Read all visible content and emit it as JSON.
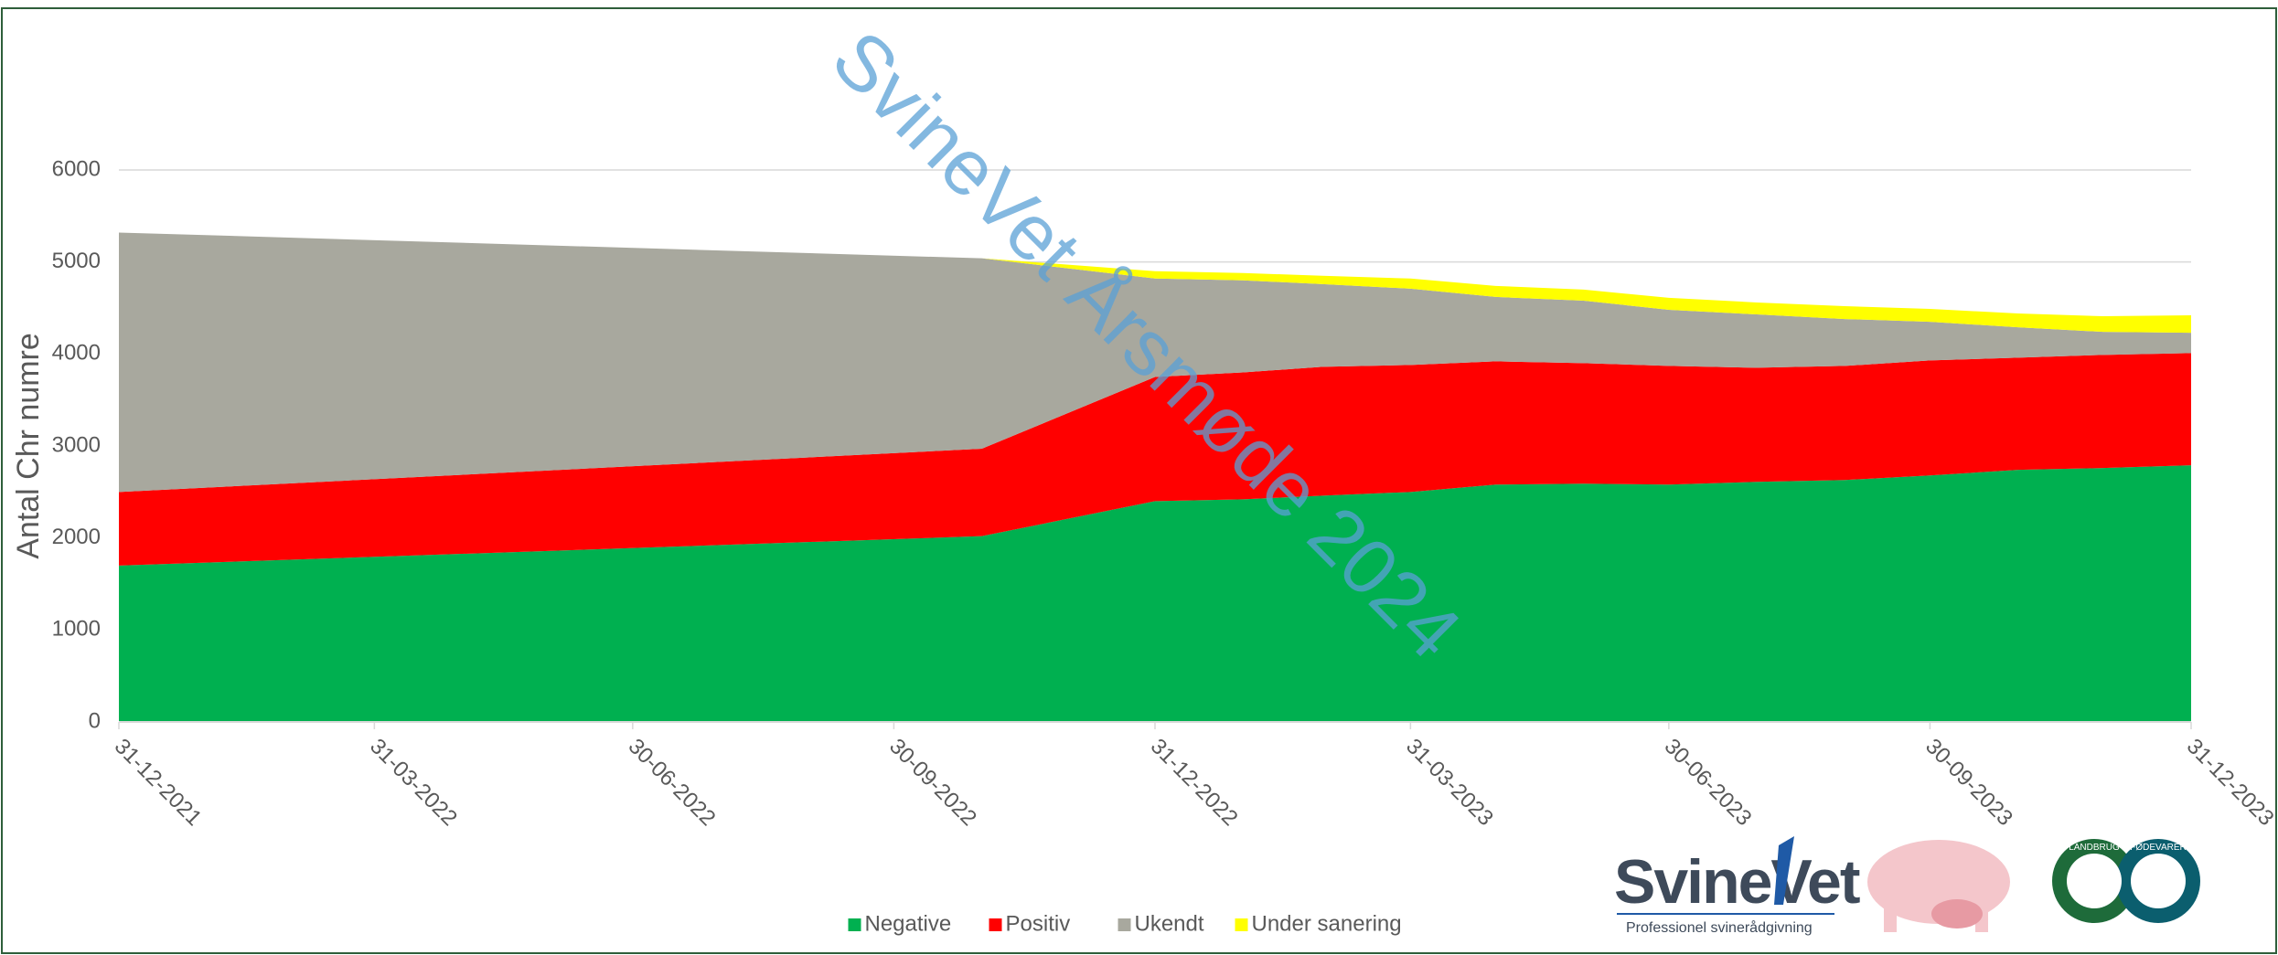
{
  "chart_data": {
    "type": "area",
    "stacked": true,
    "y_label": "Antal Chr numre",
    "watermark": "SvineVet Årsmøde 2024",
    "x": [
      "31-12-2021",
      "31-10-2022",
      "31-12-2022",
      "31-01-2023",
      "28-02-2023",
      "31-03-2023",
      "30-04-2023",
      "31-05-2023",
      "30-06-2023",
      "31-07-2023",
      "31-08-2023",
      "30-09-2023",
      "31-10-2023",
      "30-11-2023",
      "31-12-2023"
    ],
    "xlim": [
      "31-12-2021",
      "31-12-2023"
    ],
    "xticks": [
      "31-12-2021",
      "31-03-2022",
      "30-06-2022",
      "30-09-2022",
      "31-12-2022",
      "31-03-2023",
      "30-06-2023",
      "30-09-2023",
      "31-12-2023"
    ],
    "ylim": [
      0,
      6000
    ],
    "yticks": [
      0,
      1000,
      2000,
      3000,
      4000,
      5000,
      6000
    ],
    "grid": true,
    "legend": "bottom",
    "series": [
      {
        "name": "Negative",
        "color": "#00b050",
        "values": [
          1700,
          2020,
          2400,
          2420,
          2460,
          2500,
          2580,
          2590,
          2580,
          2610,
          2630,
          2680,
          2740,
          2760,
          2790
        ]
      },
      {
        "name": "Positiv",
        "color": "#ff0000",
        "values": [
          800,
          950,
          1350,
          1380,
          1400,
          1380,
          1340,
          1310,
          1290,
          1240,
          1240,
          1250,
          1220,
          1230,
          1220
        ]
      },
      {
        "name": "Ukendt",
        "color": "#a8a89e",
        "values": [
          2820,
          2070,
          1070,
          1000,
          900,
          830,
          700,
          680,
          610,
          580,
          510,
          420,
          330,
          250,
          220
        ]
      },
      {
        "name": "Under sanering",
        "color": "#ffff00",
        "values": [
          0,
          0,
          80,
          80,
          90,
          110,
          120,
          120,
          130,
          130,
          140,
          140,
          150,
          170,
          190
        ]
      }
    ]
  },
  "logos": {
    "svinevet": "SvineVet",
    "svinevet_tagline": "Professionel svinerådgivning",
    "lf_left": "LANDBRUG",
    "lf_right": "FØDEVARER"
  }
}
